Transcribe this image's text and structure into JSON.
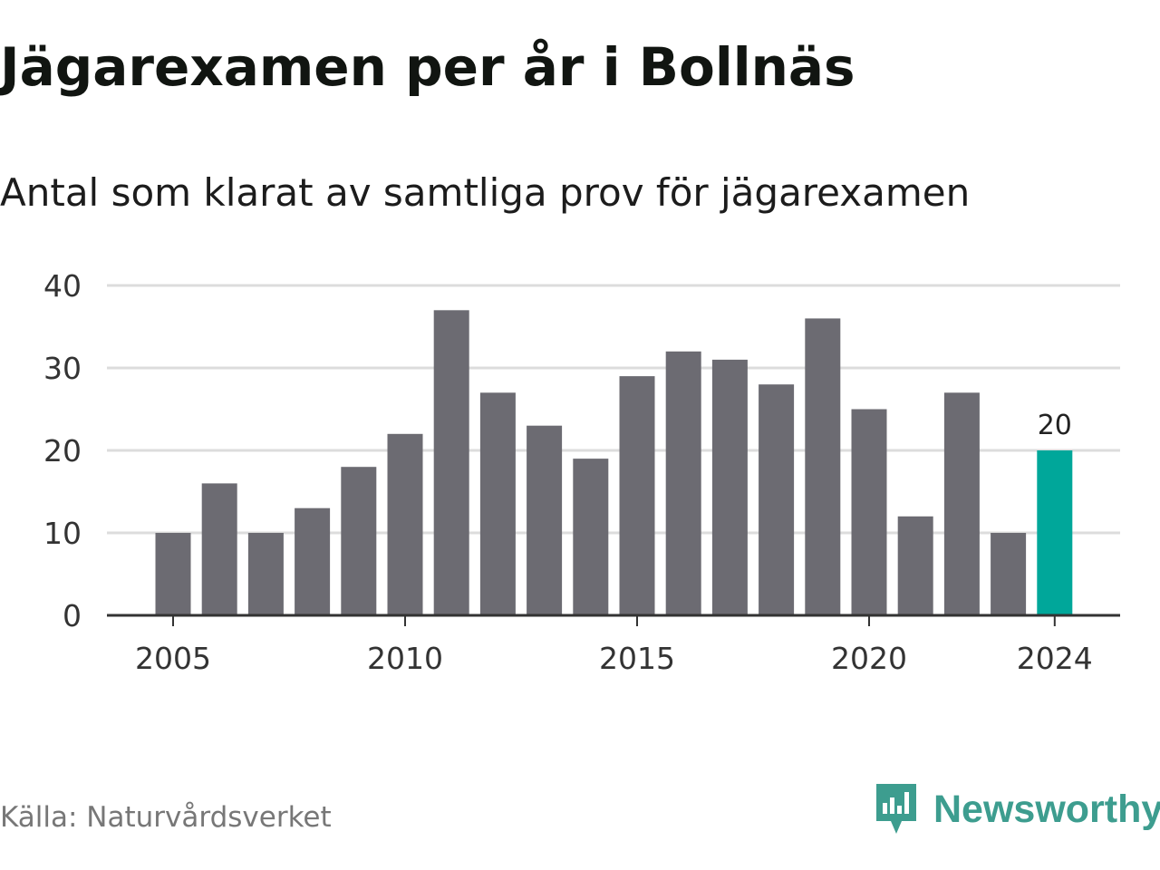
{
  "header": {
    "title": "Jägarexamen per år i Bollnäs",
    "subtitle": "Antal som klarat av samtliga prov för jägarexamen"
  },
  "footer": {
    "source": "Källa: Naturvårdsverket",
    "brand": "Newsworthy",
    "brand_icon": "newsworthy-logo-icon"
  },
  "colors": {
    "bar": "#6c6b72",
    "highlight": "#00a79a",
    "grid": "#dcdcdc",
    "axis": "#333333",
    "brand": "#3d9d8f"
  },
  "chart_data": {
    "type": "bar",
    "title": "Jägarexamen per år i Bollnäs",
    "subtitle": "Antal som klarat av samtliga prov för jägarexamen",
    "categories": [
      2005,
      2006,
      2007,
      2008,
      2009,
      2010,
      2011,
      2012,
      2013,
      2014,
      2015,
      2016,
      2017,
      2018,
      2019,
      2020,
      2021,
      2022,
      2023,
      2024
    ],
    "values": [
      10,
      16,
      10,
      13,
      18,
      22,
      37,
      27,
      23,
      19,
      29,
      32,
      31,
      28,
      36,
      25,
      12,
      27,
      10,
      20
    ],
    "highlight": {
      "category": 2024,
      "label": "20"
    },
    "x_ticks": [
      "2005",
      "2010",
      "2015",
      "2020",
      "2024"
    ],
    "y_ticks": [
      "0",
      "10",
      "20",
      "30",
      "40"
    ],
    "ylim": [
      0,
      40
    ],
    "xlabel": "",
    "ylabel": "",
    "grid": true,
    "legend": "none"
  }
}
